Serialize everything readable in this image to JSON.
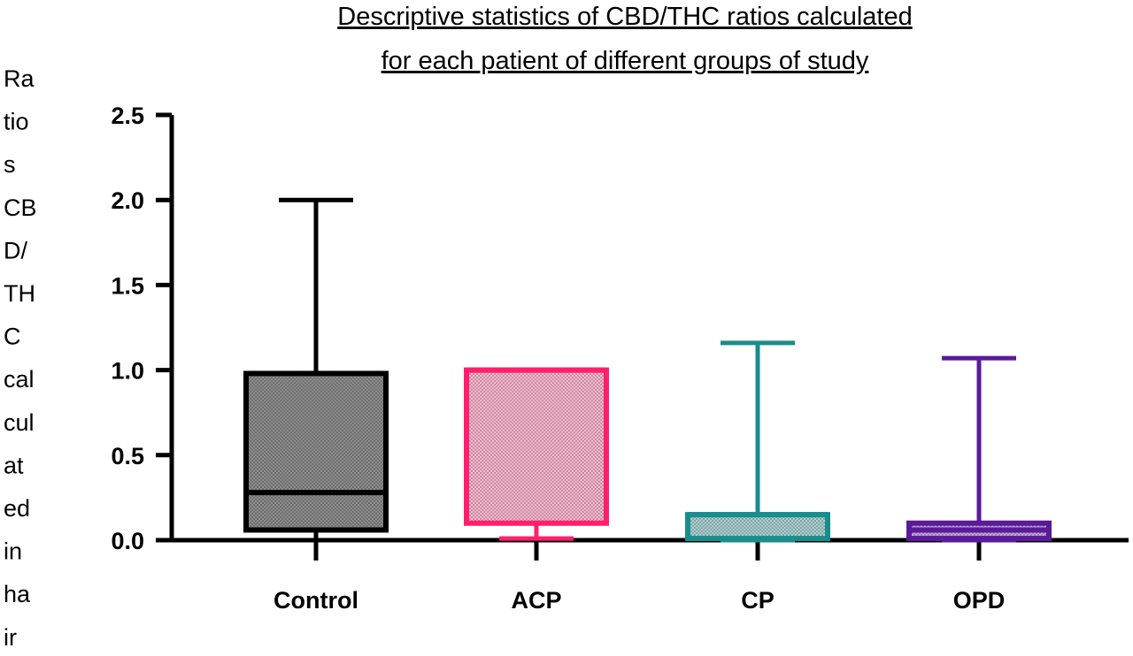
{
  "chart_data": {
    "type": "box",
    "title_lines": [
      "Descriptive statistics of CBD/THC ratios calculated",
      "for each patient of different groups of study"
    ],
    "ylabel_lines": [
      "Ra",
      "tio",
      "s",
      "CB",
      "D/",
      "TH",
      "C",
      "cal",
      "cul",
      "at",
      "ed",
      "in",
      "ha",
      "ir"
    ],
    "xlabel": "",
    "ylim": [
      0,
      2.5
    ],
    "yticks": [
      "0.0",
      "0.5",
      "1.0",
      "1.5",
      "2.0",
      "2.5"
    ],
    "ytick_values": [
      0,
      0.5,
      1.0,
      1.5,
      2.0,
      2.5
    ],
    "grid": false,
    "categories": [
      "Control",
      "ACP",
      "CP",
      "OPD"
    ],
    "boxes": [
      {
        "category": "Control",
        "min": 0.0,
        "q1": 0.06,
        "median": 0.28,
        "q3": 0.98,
        "max": 2.0,
        "color": "#000000",
        "fill": "#8c8c8c"
      },
      {
        "category": "ACP",
        "min": 0.01,
        "q1": 0.1,
        "median": 1.0,
        "q3": 1.0,
        "max": 1.0,
        "color": "#ff1f6e",
        "fill": "#f7b6cd"
      },
      {
        "category": "CP",
        "min": 0.0,
        "q1": 0.01,
        "median": 0.15,
        "q3": 0.15,
        "max": 1.16,
        "color": "#1a8c8c",
        "fill": "#a8cfcf"
      },
      {
        "category": "OPD",
        "min": 0.0,
        "q1": 0.01,
        "median": 0.06,
        "q3": 0.1,
        "max": 1.07,
        "color": "#5b1a99",
        "fill": "#c0a8d6"
      }
    ]
  }
}
